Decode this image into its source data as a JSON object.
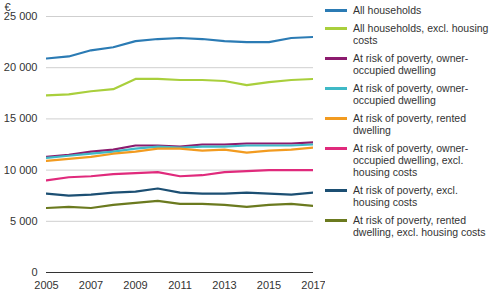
{
  "chart_data": {
    "type": "line",
    "y_label": "€",
    "x": [
      2005,
      2006,
      2007,
      2008,
      2009,
      2010,
      2011,
      2012,
      2013,
      2014,
      2015,
      2016,
      2017
    ],
    "xlim": [
      2005,
      2017
    ],
    "xticks": [
      2005,
      2007,
      2009,
      2011,
      2013,
      2015,
      2017
    ],
    "ylim": [
      0,
      25000
    ],
    "yticks": [
      0,
      {
        "value": 5000,
        "label": "5 000"
      },
      {
        "value": 10000,
        "label": "10 000"
      },
      {
        "value": 15000,
        "label": "15 000"
      },
      {
        "value": 20000,
        "label": "20 000"
      },
      {
        "value": 25000,
        "label": "25 000"
      }
    ],
    "grid": true,
    "legend": "right",
    "series": [
      {
        "name": "All households",
        "color": "#2b7bb4",
        "values": [
          20900,
          21100,
          21700,
          22000,
          22600,
          22800,
          22900,
          22800,
          22600,
          22500,
          22500,
          22900,
          23000
        ]
      },
      {
        "name": "All households, excl. housing costs",
        "color": "#a9cf3c",
        "values": [
          17300,
          17400,
          17700,
          17900,
          18900,
          18900,
          18800,
          18800,
          18700,
          18300,
          18600,
          18800,
          18900
        ]
      },
      {
        "name": "At risk of poverty, owner-occupied dwelling",
        "color": "#8c1b6e",
        "values": [
          11300,
          11500,
          11800,
          12000,
          12400,
          12400,
          12300,
          12500,
          12500,
          12600,
          12600,
          12600,
          12700
        ]
      },
      {
        "name": "At risk of poverty, owner-occupied dwelling",
        "color": "#3fb9c6",
        "values": [
          11200,
          11400,
          11600,
          11800,
          12100,
          12300,
          12200,
          12300,
          12300,
          12400,
          12400,
          12400,
          12500
        ]
      },
      {
        "name": "At risk of poverty, rented dwelling",
        "color": "#f29b20",
        "values": [
          10900,
          11100,
          11300,
          11600,
          11800,
          12100,
          12100,
          11900,
          12000,
          11700,
          11900,
          12000,
          12200
        ]
      },
      {
        "name": "At risk of poverty, owner-occupied dwelling, excl. housing costs",
        "color": "#e02a7c",
        "values": [
          9000,
          9300,
          9400,
          9600,
          9700,
          9800,
          9400,
          9500,
          9800,
          9900,
          10000,
          10000,
          10000
        ]
      },
      {
        "name": "At risk of poverty, excl. housing costs",
        "color": "#1c4f73",
        "values": [
          7700,
          7500,
          7600,
          7800,
          7900,
          8200,
          7800,
          7700,
          7700,
          7800,
          7700,
          7600,
          7800
        ]
      },
      {
        "name": "At risk of poverty, rented dwelling, excl. housing costs",
        "color": "#6b7a1f",
        "values": [
          6300,
          6400,
          6300,
          6600,
          6800,
          7000,
          6700,
          6700,
          6600,
          6400,
          6600,
          6700,
          6500
        ]
      }
    ]
  }
}
